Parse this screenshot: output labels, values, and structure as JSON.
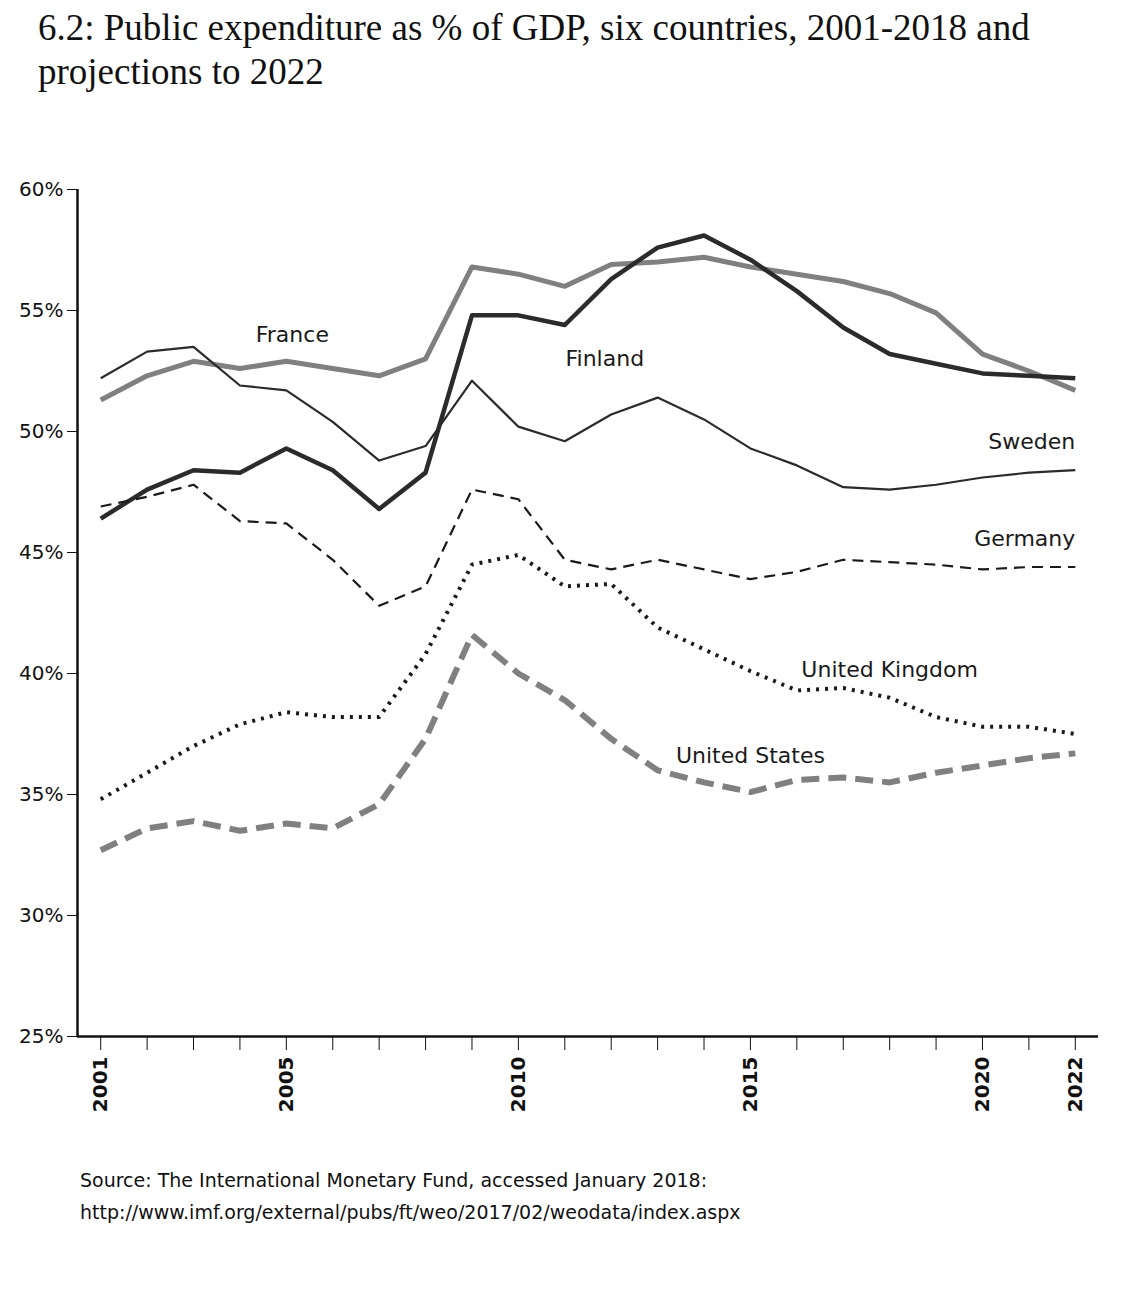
{
  "chart_data": {
    "type": "line",
    "title": "6.2: Public expenditure as % of GDP, six countries, 2001-2018 and projections to 2022",
    "caption": [
      "Source: The International Monetary Fund, accessed January 2018:",
      "http://www.imf.org/external/pubs/ft/weo/2017/02/weodata/index.aspx"
    ],
    "x": [
      2001,
      2002,
      2003,
      2004,
      2005,
      2006,
      2007,
      2008,
      2009,
      2010,
      2011,
      2012,
      2013,
      2014,
      2015,
      2016,
      2017,
      2018,
      2019,
      2020,
      2021,
      2022
    ],
    "xlim": [
      2000.5,
      2022.5
    ],
    "xticks": [
      2001,
      2005,
      2010,
      2015,
      2020,
      2022
    ],
    "ylim": [
      25,
      60
    ],
    "yticks": [
      {
        "value": 25,
        "label": "25%"
      },
      {
        "value": 30,
        "label": "30%"
      },
      {
        "value": 35,
        "label": "35%"
      },
      {
        "value": 40,
        "label": "40%"
      },
      {
        "value": 45,
        "label": "45%"
      },
      {
        "value": 50,
        "label": "50%"
      },
      {
        "value": 55,
        "label": "55%"
      },
      {
        "value": 60,
        "label": "60%"
      }
    ],
    "grid": false,
    "series": [
      {
        "name": "France",
        "color": "#808080",
        "line_style": "solid",
        "values": [
          51.3,
          52.3,
          52.9,
          52.6,
          52.9,
          52.6,
          52.3,
          53.0,
          56.8,
          56.5,
          56.0,
          56.9,
          57.0,
          57.2,
          56.8,
          56.5,
          56.2,
          55.7,
          54.9,
          53.2,
          52.5,
          51.7
        ]
      },
      {
        "name": "Finland",
        "color": "#2b2b2b",
        "line_style": "solid",
        "values": [
          46.4,
          47.6,
          48.4,
          48.3,
          49.3,
          48.4,
          46.8,
          48.3,
          54.8,
          54.8,
          54.4,
          56.3,
          57.6,
          58.1,
          57.1,
          55.8,
          54.3,
          53.2,
          52.8,
          52.4,
          52.3,
          52.2
        ]
      },
      {
        "name": "Sweden",
        "color": "#2b2b2b",
        "line_style": "solid",
        "values": [
          52.2,
          53.3,
          53.5,
          51.9,
          51.7,
          50.4,
          48.8,
          49.4,
          52.1,
          50.2,
          49.6,
          50.7,
          51.4,
          50.5,
          49.3,
          48.6,
          47.7,
          47.6,
          47.8,
          48.1,
          48.3,
          48.4
        ]
      },
      {
        "name": "Germany",
        "color": "#1a1a1a",
        "line_style": "dashed",
        "values": [
          46.9,
          47.3,
          47.8,
          46.3,
          46.2,
          44.7,
          42.8,
          43.6,
          47.6,
          47.2,
          44.7,
          44.3,
          44.7,
          44.3,
          43.9,
          44.2,
          44.7,
          44.6,
          44.5,
          44.3,
          44.4,
          44.4
        ]
      },
      {
        "name": "United Kingdom",
        "color": "#1a1a1a",
        "line_style": "dotted",
        "values": [
          34.8,
          35.9,
          37.0,
          37.9,
          38.4,
          38.2,
          38.2,
          40.8,
          44.5,
          44.9,
          43.6,
          43.7,
          41.9,
          41.0,
          40.1,
          39.3,
          39.4,
          39.0,
          38.2,
          37.8,
          37.8,
          37.5
        ]
      },
      {
        "name": "United States",
        "color": "#808080",
        "line_style": "dashed",
        "values": [
          32.7,
          33.6,
          33.9,
          33.5,
          33.8,
          33.6,
          34.6,
          37.3,
          41.6,
          40.0,
          38.9,
          37.3,
          36.0,
          35.5,
          35.1,
          35.6,
          35.7,
          35.5,
          35.9,
          36.2,
          36.5,
          36.7
        ]
      }
    ]
  }
}
